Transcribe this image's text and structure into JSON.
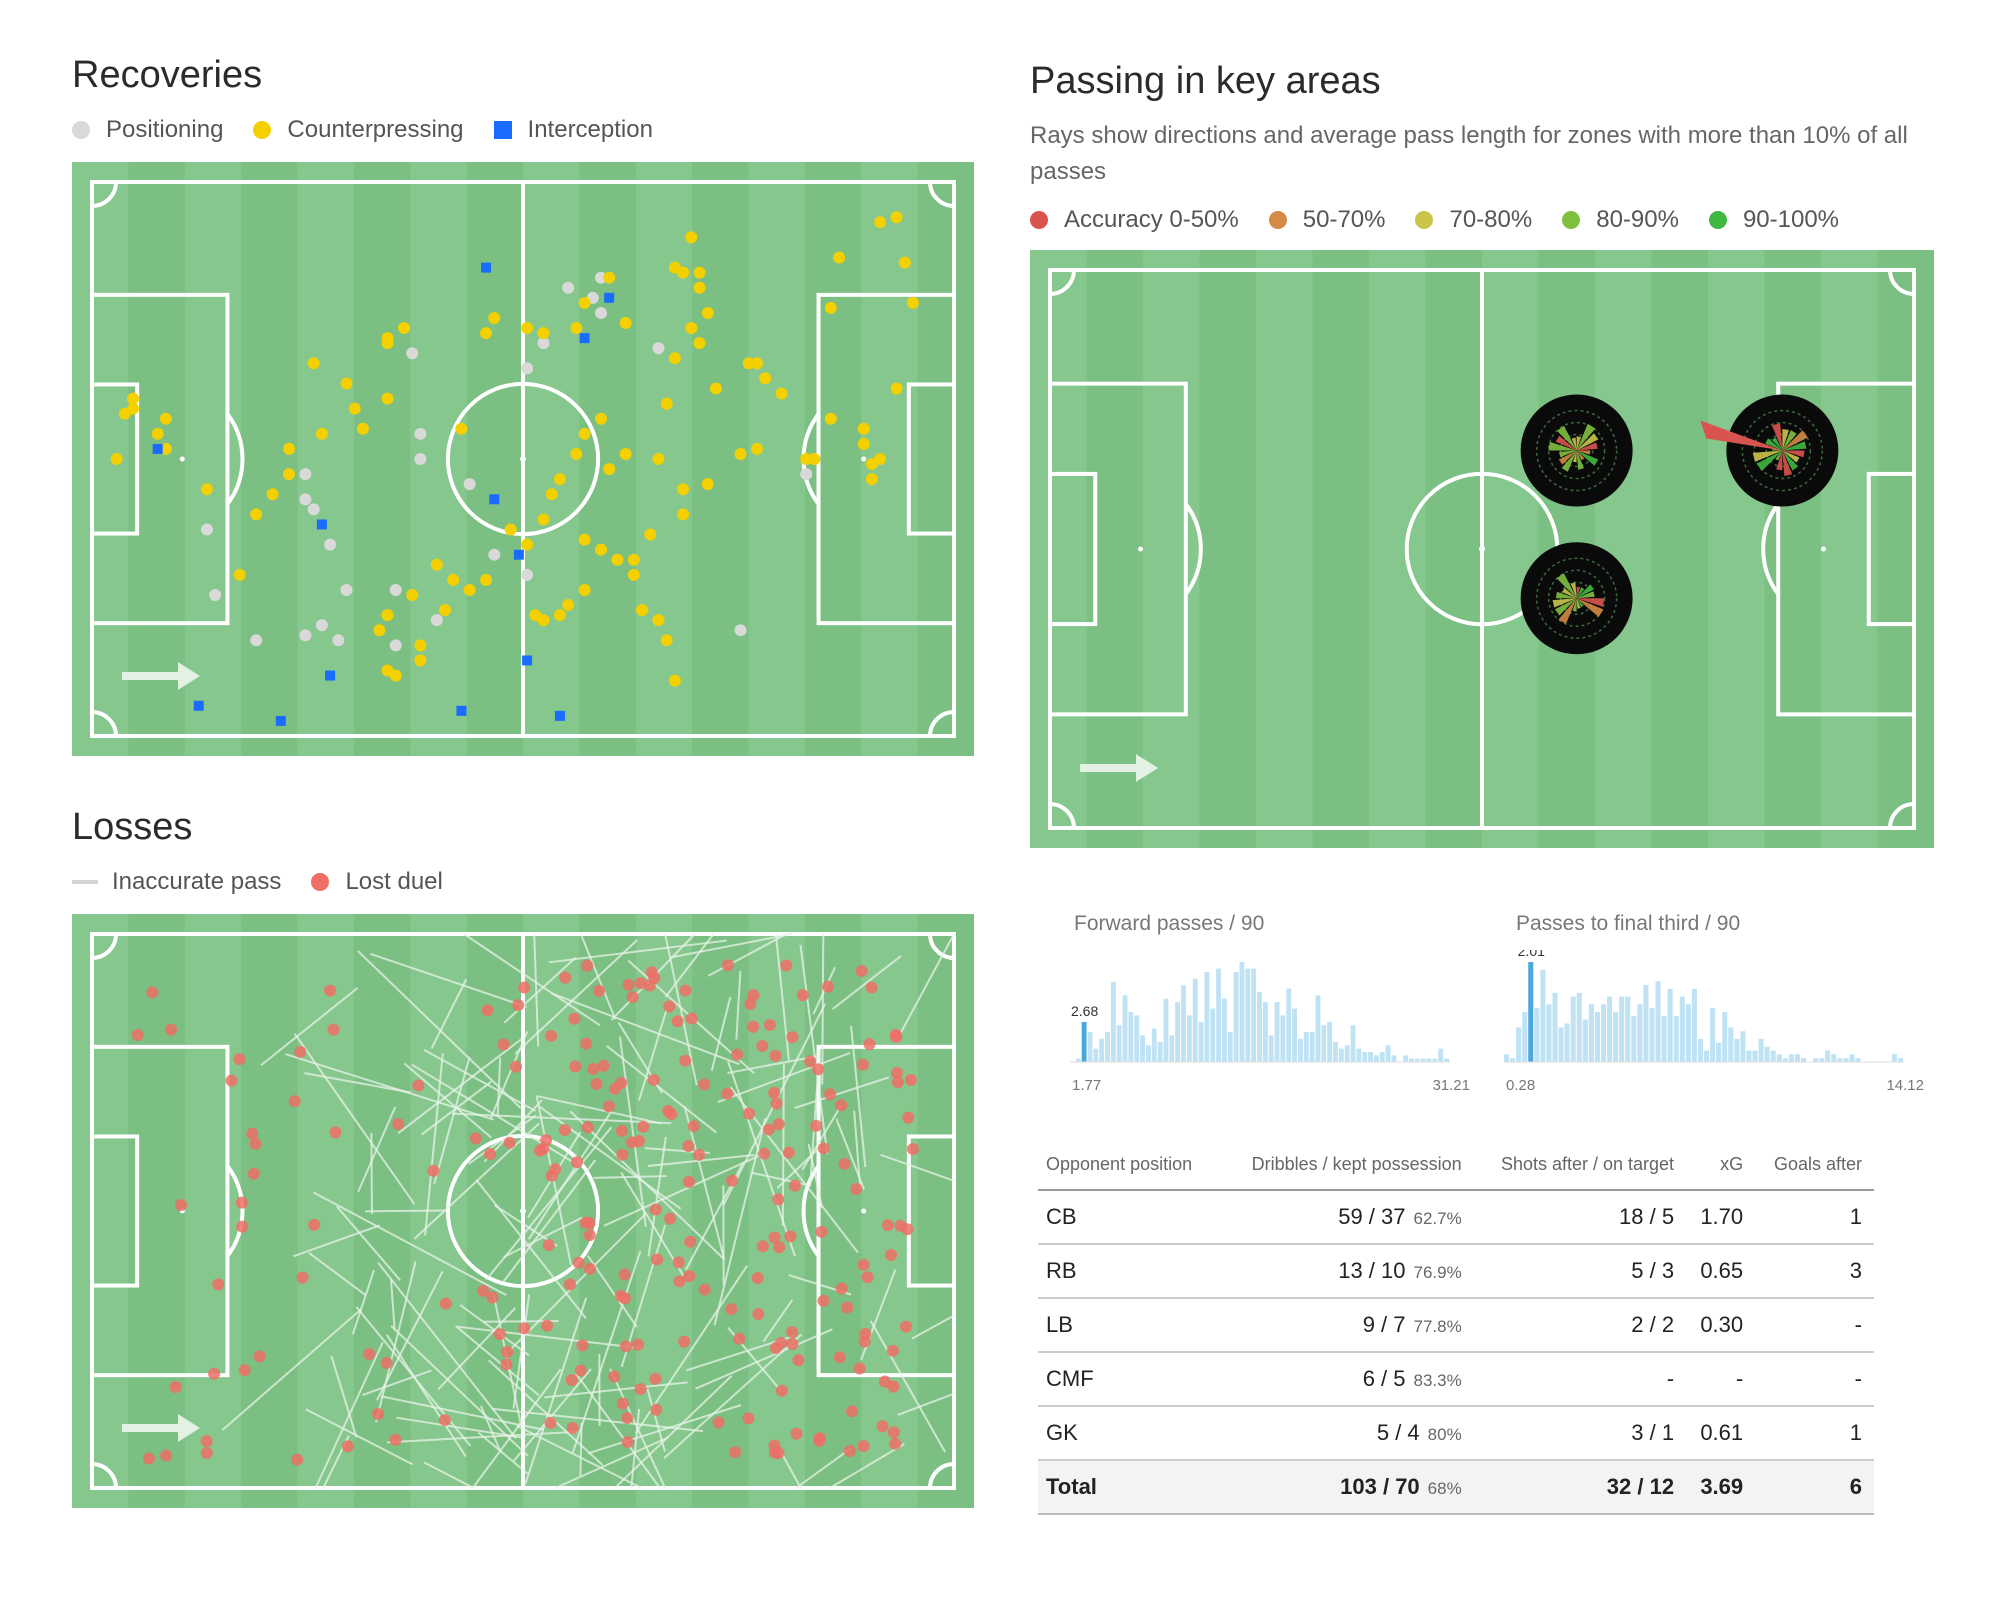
{
  "colors": {
    "pitch_light": "#86c78d",
    "pitch_dark": "#7bbf83",
    "positioning": "#d9d9d9",
    "counterpressing": "#f5d000",
    "interception": "#1a6cff",
    "inaccurate_pass": "#dcdcdc",
    "lost_duel": "#ef6f66",
    "acc_0_50": "#d9534f",
    "acc_50_70": "#d58a45",
    "acc_70_80": "#cbc44a",
    "acc_80_90": "#7fbf3f",
    "acc_90_100": "#3fb83f",
    "hist_bar": "#bfe2f4",
    "hist_highlight": "#4ba8de"
  },
  "recoveries": {
    "title": "Recoveries",
    "legend": [
      "Positioning",
      "Counterpressing",
      "Interception"
    ]
  },
  "losses": {
    "title": "Losses",
    "legend": [
      "Inaccurate pass",
      "Lost duel"
    ]
  },
  "passing": {
    "title": "Passing in key areas",
    "subtitle": "Rays show directions and average pass length for zones with more than 10% of all passes",
    "legend": [
      "Accuracy 0-50%",
      "50-70%",
      "70-80%",
      "80-90%",
      "90-100%"
    ]
  },
  "chart_data": [
    {
      "type": "scatter",
      "title": "Recoveries",
      "series": [
        {
          "name": "Positioning",
          "points": [
            [
              39,
              34
            ],
            [
              14,
              69
            ],
            [
              15,
              82
            ],
            [
              29,
              72
            ],
            [
              30,
              91
            ],
            [
              20,
              91
            ],
            [
              37,
              92
            ],
            [
              40,
              50
            ],
            [
              40,
              55
            ],
            [
              46,
              60
            ],
            [
              31,
              81
            ],
            [
              28,
              88
            ],
            [
              26,
              90
            ],
            [
              42,
              87
            ],
            [
              37,
              81
            ],
            [
              27,
              65
            ],
            [
              26,
              58
            ],
            [
              26,
              63
            ],
            [
              79,
              89
            ],
            [
              87,
              58
            ],
            [
              69,
              33
            ],
            [
              62,
              19
            ],
            [
              55,
              32
            ],
            [
              58,
              21
            ],
            [
              61,
              23
            ],
            [
              62,
              26
            ],
            [
              53,
              37
            ],
            [
              49,
              74
            ],
            [
              53,
              78
            ]
          ]
        },
        {
          "name": "Counterpressing",
          "points": [
            [
              4,
              46
            ],
            [
              5,
              45
            ],
            [
              9,
              47
            ],
            [
              8,
              50
            ],
            [
              5,
              43
            ],
            [
              3,
              55
            ],
            [
              9,
              53
            ],
            [
              36,
              32
            ],
            [
              36,
              31
            ],
            [
              36,
              43
            ],
            [
              38,
              29
            ],
            [
              45,
              49
            ],
            [
              49,
              27
            ],
            [
              48,
              30
            ],
            [
              53,
              29
            ],
            [
              55,
              30
            ],
            [
              65,
              28
            ],
            [
              70,
              44
            ],
            [
              69,
              55
            ],
            [
              62,
              47
            ],
            [
              60,
              50
            ],
            [
              59,
              54
            ],
            [
              57,
              59
            ],
            [
              51,
              69
            ],
            [
              42,
              76
            ],
            [
              44,
              79
            ],
            [
              39,
              82
            ],
            [
              36,
              86
            ],
            [
              35,
              89
            ],
            [
              46,
              81
            ],
            [
              43,
              85
            ],
            [
              40,
              92
            ],
            [
              40,
              95
            ],
            [
              36,
              97
            ],
            [
              37,
              98
            ],
            [
              48,
              79
            ],
            [
              53,
              72
            ],
            [
              55,
              67
            ],
            [
              56,
              62
            ],
            [
              60,
              71
            ],
            [
              62,
              73
            ],
            [
              66,
              78
            ],
            [
              67,
              85
            ],
            [
              69,
              87
            ],
            [
              70,
              91
            ],
            [
              71,
              99
            ],
            [
              73,
              11
            ],
            [
              74,
              18
            ],
            [
              75,
              26
            ],
            [
              74,
              32
            ],
            [
              76,
              41
            ],
            [
              80,
              36
            ],
            [
              81,
              36
            ],
            [
              82,
              39
            ],
            [
              84,
              42
            ],
            [
              87,
              55
            ],
            [
              88,
              55
            ],
            [
              90,
              47
            ],
            [
              94,
              49
            ],
            [
              94,
              52
            ],
            [
              95,
              56
            ],
            [
              95,
              59
            ],
            [
              96,
              55
            ],
            [
              98,
              41
            ],
            [
              100,
              24
            ],
            [
              99,
              16
            ],
            [
              98,
              7
            ],
            [
              96,
              8
            ],
            [
              91,
              15
            ],
            [
              90,
              25
            ],
            [
              81,
              53
            ],
            [
              79,
              54
            ],
            [
              75,
              60
            ],
            [
              72,
              61
            ],
            [
              72,
              66
            ],
            [
              68,
              70
            ],
            [
              66,
              75
            ],
            [
              64,
              75
            ],
            [
              60,
              81
            ],
            [
              58,
              84
            ],
            [
              57,
              86
            ],
            [
              54,
              86
            ],
            [
              55,
              87
            ],
            [
              63,
              57
            ],
            [
              65,
              54
            ],
            [
              71,
              35
            ],
            [
              73,
              29
            ],
            [
              74,
              21
            ],
            [
              72,
              18
            ],
            [
              71,
              17
            ],
            [
              63,
              19
            ],
            [
              60,
              24
            ],
            [
              59,
              29
            ],
            [
              27,
              36
            ],
            [
              31,
              40
            ],
            [
              32,
              45
            ],
            [
              33,
              49
            ],
            [
              28,
              50
            ],
            [
              24,
              53
            ],
            [
              24,
              58
            ],
            [
              22,
              62
            ],
            [
              20,
              66
            ],
            [
              18,
              78
            ],
            [
              14,
              61
            ]
          ]
        },
        {
          "name": "Interception",
          "points": [
            [
              48,
              17
            ],
            [
              49,
              63
            ],
            [
              28,
              68
            ],
            [
              29,
              98
            ],
            [
              23,
              107
            ],
            [
              13,
              104
            ],
            [
              52,
              74
            ],
            [
              53,
              95
            ],
            [
              57,
              106
            ],
            [
              45,
              105
            ],
            [
              60,
              31
            ],
            [
              63,
              23
            ],
            [
              8,
              53
            ]
          ]
        }
      ]
    },
    {
      "type": "scatter",
      "title": "Losses",
      "series": [
        {
          "name": "Inaccurate pass",
          "count": 150
        },
        {
          "name": "Lost duel",
          "count": 220
        }
      ]
    },
    {
      "type": "bar",
      "title": "Forward passes / 90",
      "xlim": [
        1.77,
        31.21
      ],
      "highlight": 2.68,
      "values": [
        0,
        1,
        12,
        9,
        4,
        7,
        9,
        24,
        11,
        20,
        15,
        14,
        8,
        5,
        10,
        6,
        19,
        8,
        18,
        23,
        14,
        25,
        12,
        27,
        16,
        28,
        19,
        9,
        27,
        30,
        28,
        28,
        21,
        18,
        8,
        18,
        14,
        22,
        16,
        7,
        9,
        9,
        20,
        11,
        12,
        6,
        4,
        5,
        11,
        4,
        3,
        3,
        2,
        3,
        5,
        2,
        0,
        2,
        1,
        1,
        1,
        1,
        1,
        4,
        1
      ]
    },
    {
      "type": "bar",
      "title": "Passes to final third / 90",
      "xlim": [
        0.28,
        14.12
      ],
      "highlight": 2.01,
      "values": [
        2,
        1,
        9,
        13,
        26,
        14,
        24,
        15,
        18,
        9,
        10,
        17,
        18,
        11,
        15,
        13,
        15,
        17,
        13,
        17,
        17,
        12,
        15,
        20,
        14,
        21,
        12,
        19,
        12,
        17,
        15,
        19,
        6,
        3,
        14,
        5,
        13,
        9,
        6,
        8,
        3,
        3,
        6,
        4,
        3,
        2,
        1,
        2,
        2,
        1,
        0,
        1,
        1,
        3,
        2,
        1,
        1,
        2,
        1,
        0,
        0,
        0,
        0,
        0,
        2,
        1
      ]
    },
    {
      "type": "table",
      "columns": [
        "Opponent position",
        "Dribbles / kept possession",
        "Shots after / on target",
        "xG",
        "Goals after"
      ],
      "rows": [
        {
          "pos": "CB",
          "dribbles": "59 / 37",
          "pct": "62.7%",
          "shots": "18 / 5",
          "xg": "1.70",
          "goals": "1"
        },
        {
          "pos": "RB",
          "dribbles": "13 / 10",
          "pct": "76.9%",
          "shots": "5 / 3",
          "xg": "0.65",
          "goals": "3"
        },
        {
          "pos": "LB",
          "dribbles": "9 / 7",
          "pct": "77.8%",
          "shots": "2 / 2",
          "xg": "0.30",
          "goals": "-"
        },
        {
          "pos": "CMF",
          "dribbles": "6 / 5",
          "pct": "83.3%",
          "shots": "-",
          "xg": "-",
          "goals": "-"
        },
        {
          "pos": "GK",
          "dribbles": "5 / 4",
          "pct": "80%",
          "shots": "3 / 1",
          "xg": "0.61",
          "goals": "1"
        },
        {
          "pos": "Total",
          "dribbles": "103 / 70",
          "pct": "68%",
          "shots": "32 / 12",
          "xg": "3.69",
          "goals": "6"
        }
      ]
    }
  ],
  "histograms": {
    "forward": {
      "label": "Forward passes / 90",
      "min": "1.77",
      "max": "31.21",
      "marker": "2.68"
    },
    "final_third": {
      "label": "Passes to final third / 90",
      "min": "0.28",
      "max": "14.12",
      "marker": "2.01"
    }
  },
  "table": {
    "headers": [
      "Opponent position",
      "Dribbles / kept possession",
      "Shots after / on target",
      "xG",
      "Goals after"
    ]
  }
}
